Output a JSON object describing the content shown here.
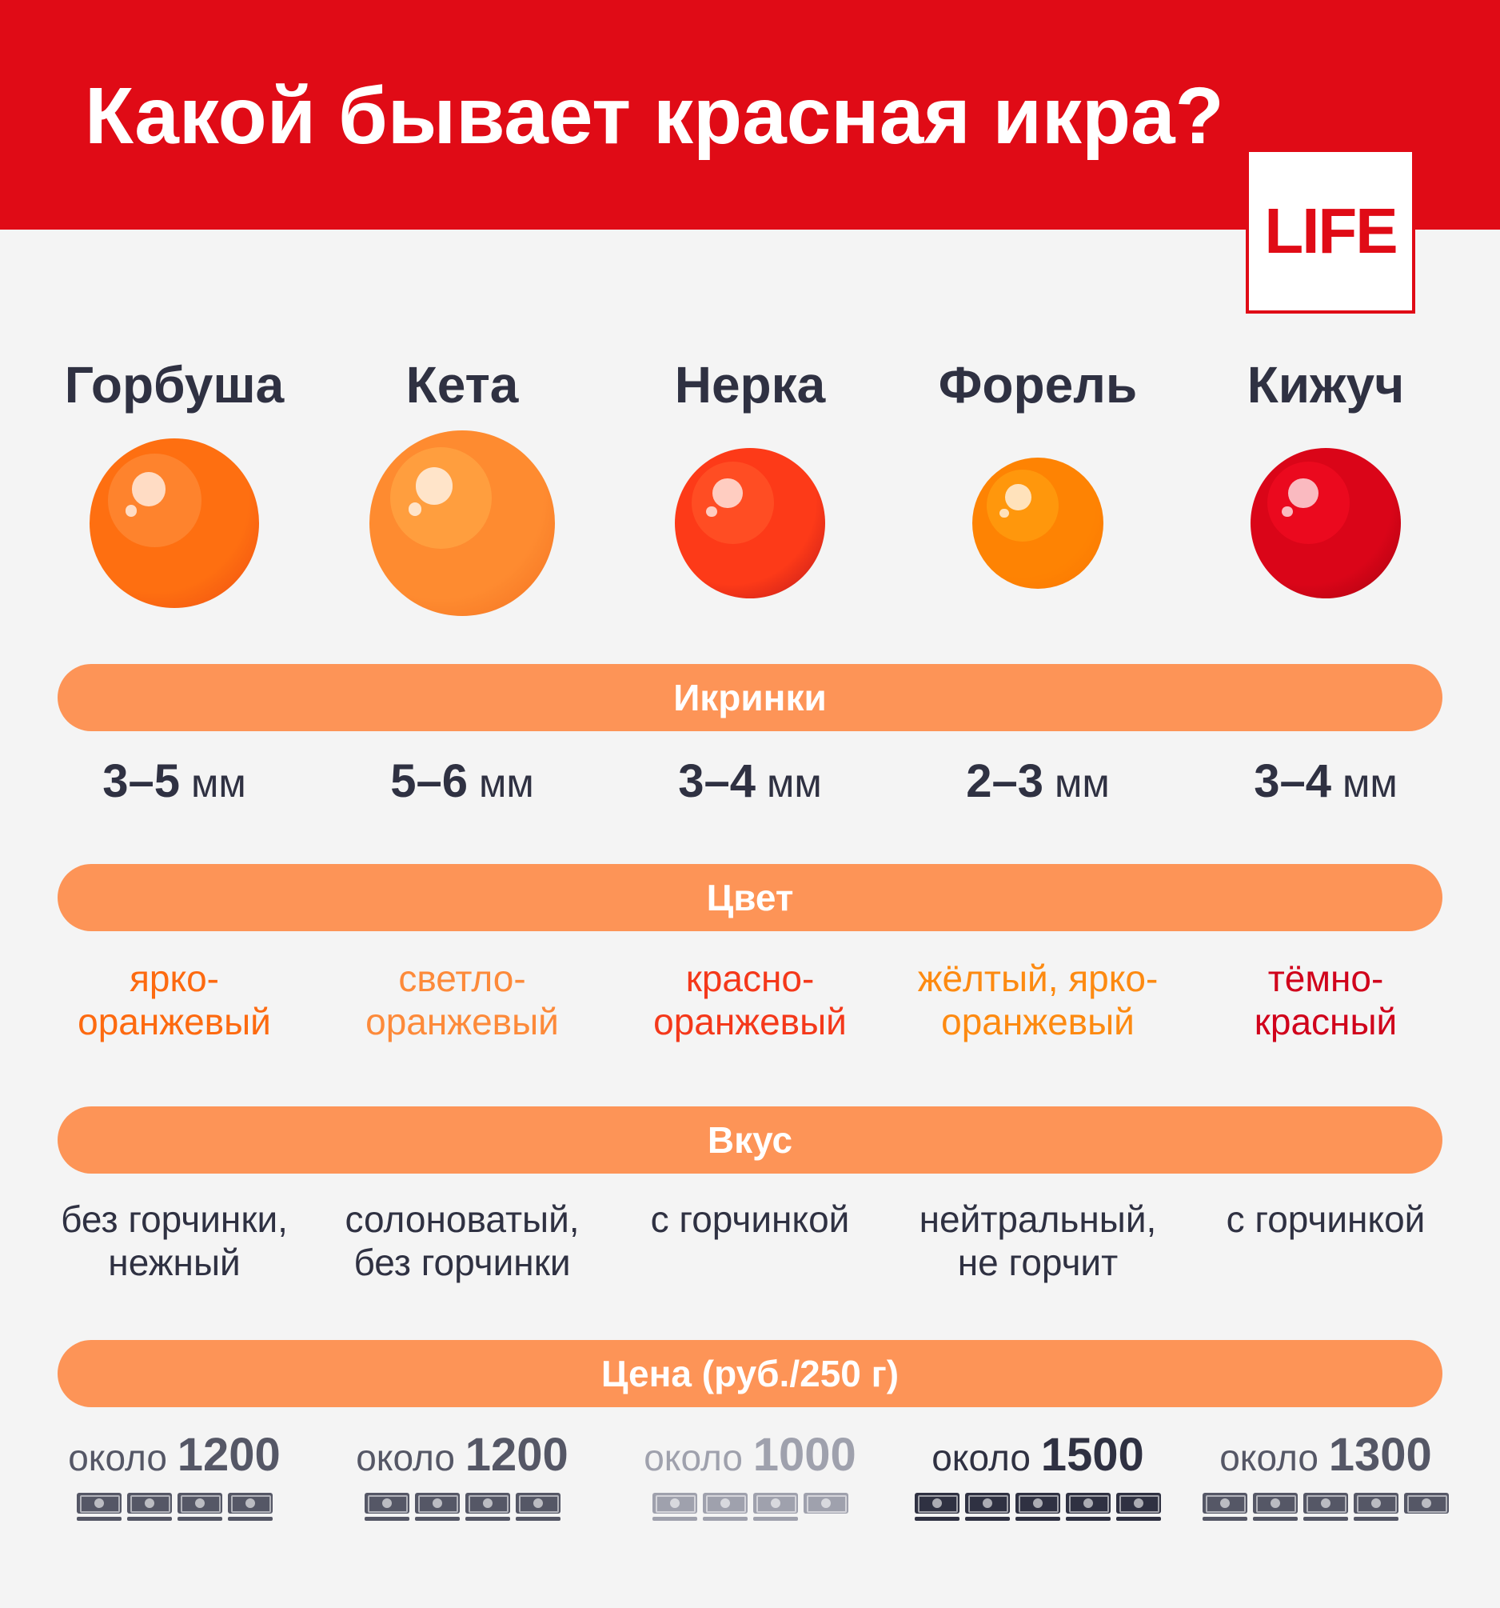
{
  "title": "Какой бывает красная икра?",
  "logo": "LIFE",
  "sections": {
    "size": "Икринки",
    "color": "Цвет",
    "taste": "Вкус",
    "price": "Цена (руб./250 г)"
  },
  "fish": [
    {
      "name": "Горбуша",
      "size_num": "3–5",
      "size_unit": "мм",
      "color_line1": "ярко-",
      "color_line2": "оранжевый",
      "text_color": "#fd6a10",
      "taste_line1": "без горчинки,",
      "taste_line2": "нежный",
      "price_prefix": "около",
      "price": "1200",
      "price_color": "#555766",
      "notes": 4,
      "egg_base": "#fe6f11",
      "egg_shade": "#ee4a12",
      "egg_inner": "#fd8a37"
    },
    {
      "name": "Кета",
      "size_num": "5–6",
      "size_unit": "мм",
      "color_line1": "светло-",
      "color_line2": "оранжевый",
      "text_color": "#fd8a3a",
      "taste_line1": "солоноватый,",
      "taste_line2": "без горчинки",
      "price_prefix": "около",
      "price": "1200",
      "price_color": "#555766",
      "notes": 4,
      "egg_base": "#fe8b30",
      "egg_shade": "#f36e20",
      "egg_inner": "#ffa443"
    },
    {
      "name": "Нерка",
      "size_num": "3–4",
      "size_unit": "мм",
      "color_line1": "красно-",
      "color_line2": "оранжевый",
      "text_color": "#f4381a",
      "taste_line1": "с горчинкой",
      "taste_line2": "",
      "price_prefix": "около",
      "price": "1000",
      "price_color": "#9fa1ad",
      "notes": 3.5,
      "egg_base": "#fd3a18",
      "egg_shade": "#b8151b",
      "egg_inner": "#ff5427"
    },
    {
      "name": "Форель",
      "size_num": "2–3",
      "size_unit": "мм",
      "color_line1": "жёлтый, ярко-",
      "color_line2": "оранжевый",
      "text_color": "#fd8a11",
      "taste_line1": "нейтральный,",
      "taste_line2": "не горчит",
      "price_prefix": "около",
      "price": "1500",
      "price_color": "#2f3142",
      "notes": 5,
      "egg_base": "#fe8303",
      "egg_shade": "#fa7502",
      "egg_inner": "#ff9d10"
    },
    {
      "name": "Кижуч",
      "size_num": "3–4",
      "size_unit": "мм",
      "color_line1": "тёмно-",
      "color_line2": "красный",
      "text_color": "#d0021b",
      "taste_line1": "с горчинкой",
      "taste_line2": "",
      "price_prefix": "около",
      "price": "1300",
      "price_color": "#555766",
      "notes": 4.5,
      "egg_base": "#da0518",
      "egg_shade": "#a1020f",
      "egg_inner": "#f00b20"
    }
  ]
}
